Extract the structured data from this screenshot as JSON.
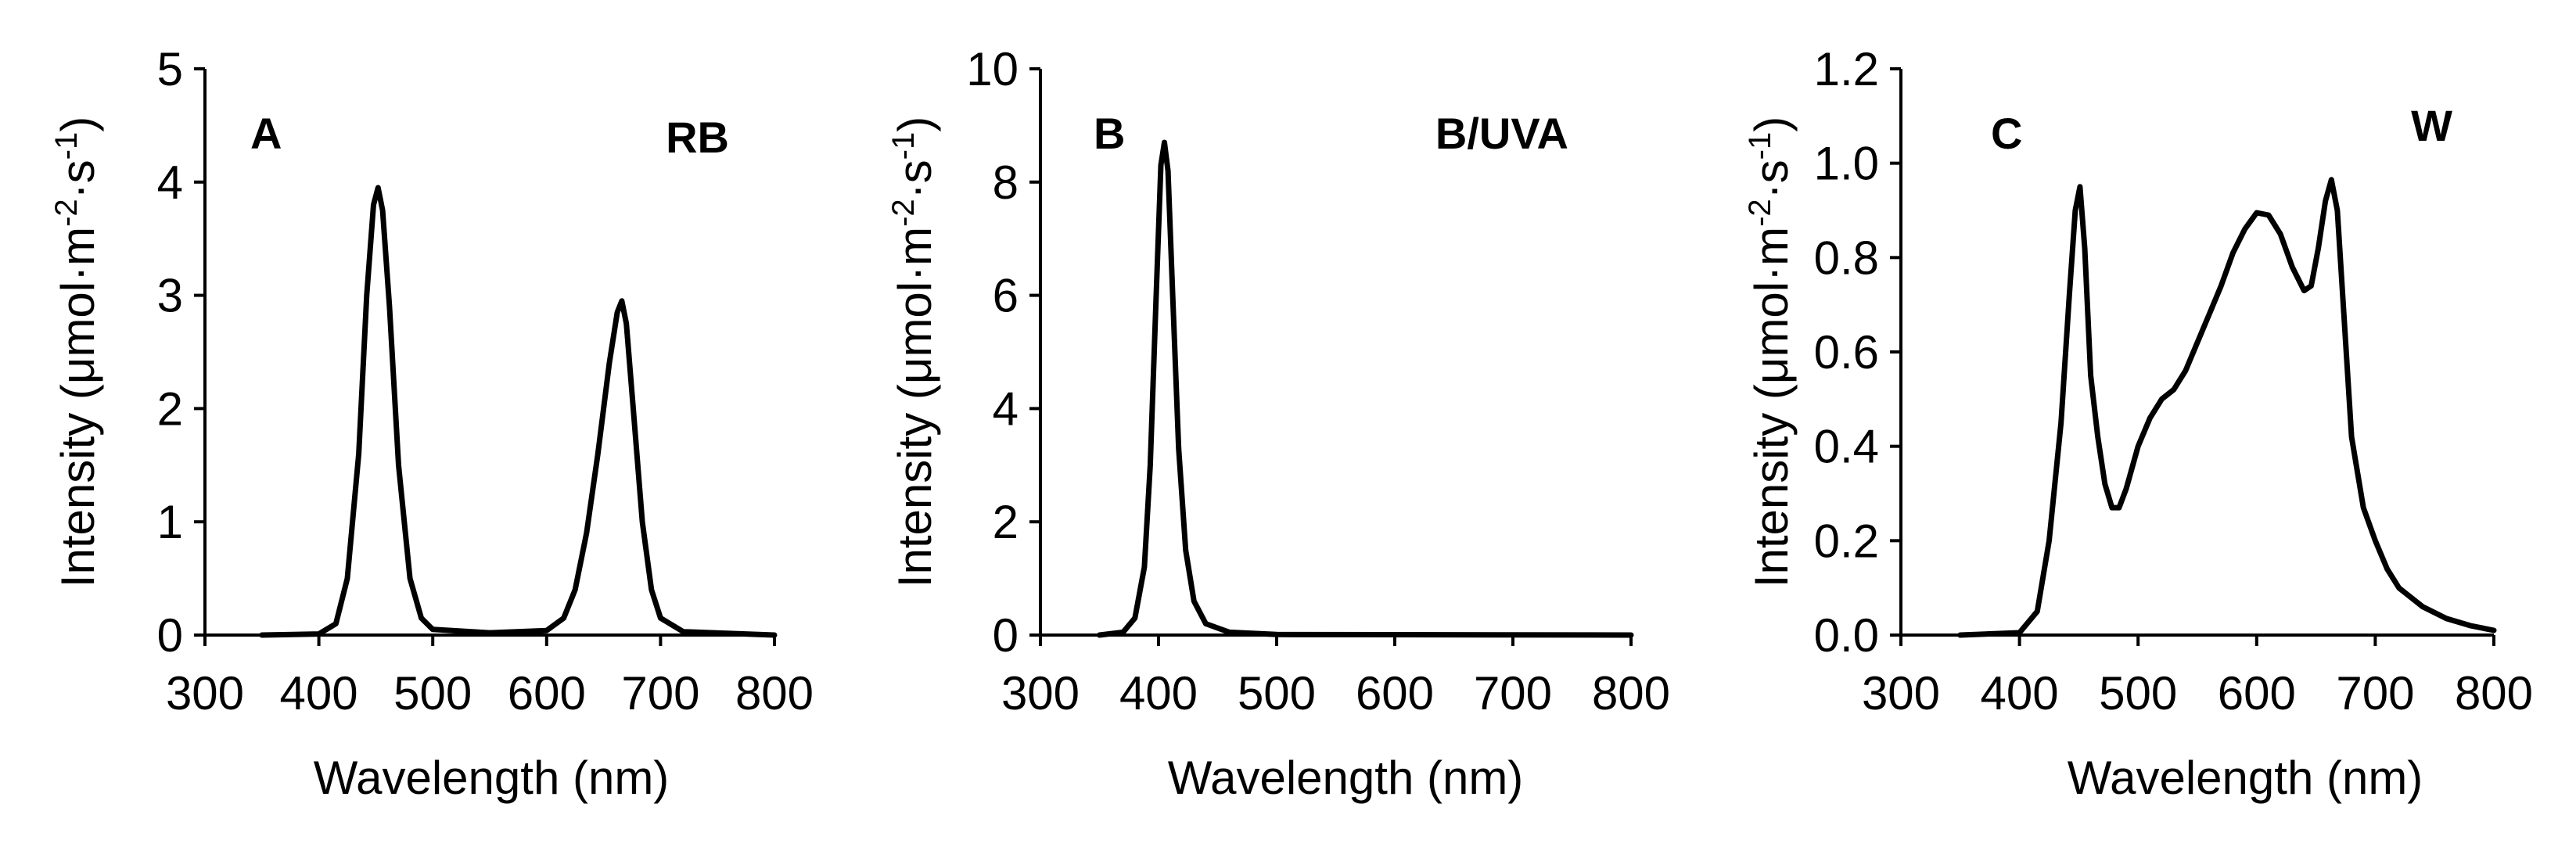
{
  "chart_data": [
    {
      "type": "line",
      "panel_label": "A",
      "panel_tag": "RB",
      "xlabel": "Wavelength (nm)",
      "ylabel": "Intensity (μmol·m-2·s-1)",
      "ylabel_parts": {
        "base": "Intensity (μmol·m",
        "sup1": "-2",
        "mid": "·s",
        "sup2": "-1",
        "end": ")"
      },
      "xlim": [
        300,
        800
      ],
      "ylim": [
        0,
        5
      ],
      "xticks": [
        "300",
        "400",
        "500",
        "600",
        "700",
        "800"
      ],
      "yticks": [
        "0",
        "1",
        "2",
        "3",
        "4",
        "5"
      ],
      "series": [
        {
          "color": "#000000",
          "points": [
            [
              350,
              0
            ],
            [
              400,
              0.01
            ],
            [
              415,
              0.1
            ],
            [
              425,
              0.5
            ],
            [
              435,
              1.6
            ],
            [
              442,
              3.0
            ],
            [
              448,
              3.8
            ],
            [
              452,
              3.95
            ],
            [
              456,
              3.75
            ],
            [
              462,
              2.9
            ],
            [
              470,
              1.5
            ],
            [
              480,
              0.5
            ],
            [
              490,
              0.15
            ],
            [
              500,
              0.05
            ],
            [
              550,
              0.02
            ],
            [
              600,
              0.04
            ],
            [
              615,
              0.15
            ],
            [
              625,
              0.4
            ],
            [
              635,
              0.9
            ],
            [
              645,
              1.6
            ],
            [
              655,
              2.4
            ],
            [
              662,
              2.85
            ],
            [
              666,
              2.95
            ],
            [
              670,
              2.75
            ],
            [
              676,
              2.0
            ],
            [
              684,
              1.0
            ],
            [
              692,
              0.4
            ],
            [
              700,
              0.15
            ],
            [
              720,
              0.03
            ],
            [
              800,
              0
            ]
          ]
        }
      ]
    },
    {
      "type": "line",
      "panel_label": "B",
      "panel_tag": "B/UVA",
      "xlabel": "Wavelength (nm)",
      "ylabel": "Intensity (μmol·m-2·s-1)",
      "ylabel_parts": {
        "base": "Intensity (μmol·m",
        "sup1": "-2",
        "mid": "·s",
        "sup2": "-1",
        "end": ")"
      },
      "xlim": [
        300,
        800
      ],
      "ylim": [
        0,
        10
      ],
      "xticks": [
        "300",
        "400",
        "500",
        "600",
        "700",
        "800"
      ],
      "yticks": [
        "0",
        "2",
        "4",
        "6",
        "8",
        "10"
      ],
      "series": [
        {
          "color": "#000000",
          "points": [
            [
              350,
              0
            ],
            [
              370,
              0.05
            ],
            [
              380,
              0.3
            ],
            [
              388,
              1.2
            ],
            [
              393,
              3.0
            ],
            [
              398,
              6.0
            ],
            [
              402,
              8.3
            ],
            [
              405,
              8.7
            ],
            [
              408,
              8.2
            ],
            [
              412,
              6.0
            ],
            [
              417,
              3.3
            ],
            [
              423,
              1.5
            ],
            [
              430,
              0.6
            ],
            [
              440,
              0.2
            ],
            [
              460,
              0.05
            ],
            [
              500,
              0.01
            ],
            [
              800,
              0
            ]
          ]
        }
      ]
    },
    {
      "type": "line",
      "panel_label": "C",
      "panel_tag": "W",
      "xlabel": "Wavelength (nm)",
      "ylabel": "Intensity (μmol·m-2·s-1)",
      "ylabel_parts": {
        "base": "Intensity (μmol·m",
        "sup1": "-2",
        "mid": "·s",
        "sup2": "-1",
        "end": ")"
      },
      "xlim": [
        300,
        800
      ],
      "ylim": [
        0,
        1.2
      ],
      "xticks": [
        "300",
        "400",
        "500",
        "600",
        "700",
        "800"
      ],
      "yticks": [
        "0.0",
        "0.2",
        "0.4",
        "0.6",
        "0.8",
        "1.0",
        "1.2"
      ],
      "series": [
        {
          "color": "#000000",
          "points": [
            [
              350,
              0
            ],
            [
              400,
              0.005
            ],
            [
              415,
              0.05
            ],
            [
              425,
              0.2
            ],
            [
              435,
              0.45
            ],
            [
              442,
              0.72
            ],
            [
              447,
              0.9
            ],
            [
              451,
              0.95
            ],
            [
              455,
              0.82
            ],
            [
              460,
              0.55
            ],
            [
              466,
              0.42
            ],
            [
              472,
              0.32
            ],
            [
              478,
              0.27
            ],
            [
              484,
              0.27
            ],
            [
              490,
              0.31
            ],
            [
              500,
              0.4
            ],
            [
              510,
              0.46
            ],
            [
              520,
              0.5
            ],
            [
              530,
              0.52
            ],
            [
              540,
              0.56
            ],
            [
              550,
              0.62
            ],
            [
              560,
              0.68
            ],
            [
              570,
              0.74
            ],
            [
              580,
              0.81
            ],
            [
              590,
              0.86
            ],
            [
              600,
              0.895
            ],
            [
              610,
              0.89
            ],
            [
              620,
              0.85
            ],
            [
              630,
              0.78
            ],
            [
              640,
              0.73
            ],
            [
              646,
              0.74
            ],
            [
              652,
              0.82
            ],
            [
              658,
              0.92
            ],
            [
              663,
              0.965
            ],
            [
              668,
              0.9
            ],
            [
              673,
              0.7
            ],
            [
              680,
              0.42
            ],
            [
              690,
              0.27
            ],
            [
              700,
              0.2
            ],
            [
              710,
              0.14
            ],
            [
              720,
              0.1
            ],
            [
              740,
              0.06
            ],
            [
              760,
              0.035
            ],
            [
              780,
              0.02
            ],
            [
              800,
              0.01
            ]
          ]
        }
      ]
    }
  ]
}
